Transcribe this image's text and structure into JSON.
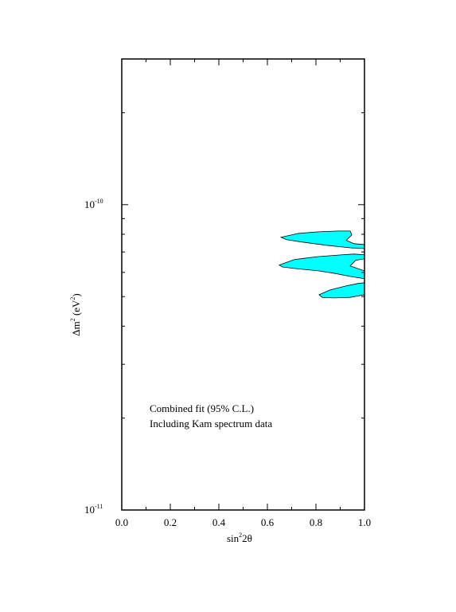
{
  "chart_data": {
    "type": "contour",
    "xlabel": {
      "text": "sin",
      "sup": "2",
      "rest": "2θ"
    },
    "ylabel": {
      "text": "Δm",
      "sup": "2",
      "mid": " (eV",
      "sup2": "2",
      "end": ")"
    },
    "annotations": [
      "Combined fit (95% C.L.)",
      "Including Kam spectrum data"
    ],
    "xlim": [
      0,
      1
    ],
    "ylim": [
      1e-11,
      3e-10
    ],
    "yscale": "log",
    "xticks": [
      {
        "value": 0,
        "label": "0.0"
      },
      0.2,
      0.4,
      0.6,
      0.8,
      {
        "value": 1,
        "label": "1.0"
      }
    ],
    "minor_xticks": [
      0.1,
      0.3,
      0.5,
      0.7,
      0.9
    ],
    "yticks": [
      {
        "value": 1e-11,
        "label": "10",
        "exponent": "-11"
      },
      {
        "value": 1e-10,
        "label": "10",
        "exponent": "-10"
      }
    ],
    "minor_yticks": [
      2e-11,
      3e-11,
      4e-11,
      5e-11,
      6e-11,
      7e-11,
      8e-11,
      9e-11,
      2e-10,
      3e-10
    ],
    "color": "#00ffff",
    "regions": [
      {
        "x": [
          0.656,
          0.728,
          0.81,
          0.892,
          0.941,
          0.948,
          0.925,
          0.957,
          1.0,
          1.0,
          0.941,
          0.843,
          0.744,
          0.679
        ],
        "y": [
          7.82e-11,
          8.05e-11,
          8.15e-11,
          8.2e-11,
          8.2e-11,
          7.96e-11,
          7.64e-11,
          7.45e-11,
          7.4e-11,
          7.18e-11,
          7.22e-11,
          7.36e-11,
          7.54e-11,
          7.68e-11
        ]
      },
      {
        "x": [
          0.649,
          0.711,
          0.81,
          0.908,
          0.957,
          1.0,
          1.0,
          0.964,
          0.941,
          1.0,
          1.0,
          0.941,
          0.875,
          0.81,
          0.711,
          0.662
        ],
        "y": [
          6.34e-11,
          6.61e-11,
          6.76e-11,
          6.85e-11,
          6.89e-11,
          6.85e-11,
          6.65e-11,
          6.57e-11,
          6.3e-11,
          6.07e-11,
          5.72e-11,
          5.82e-11,
          5.96e-11,
          6.07e-11,
          6.18e-11,
          6.25e-11
        ]
      },
      {
        "x": [
          0.813,
          0.859,
          0.925,
          0.974,
          1.0,
          1.0,
          0.941,
          0.875,
          0.826
        ],
        "y": [
          5.07e-11,
          5.26e-11,
          5.42e-11,
          5.52e-11,
          5.55e-11,
          5.07e-11,
          4.97e-11,
          4.95e-11,
          4.97e-11
        ]
      }
    ]
  }
}
